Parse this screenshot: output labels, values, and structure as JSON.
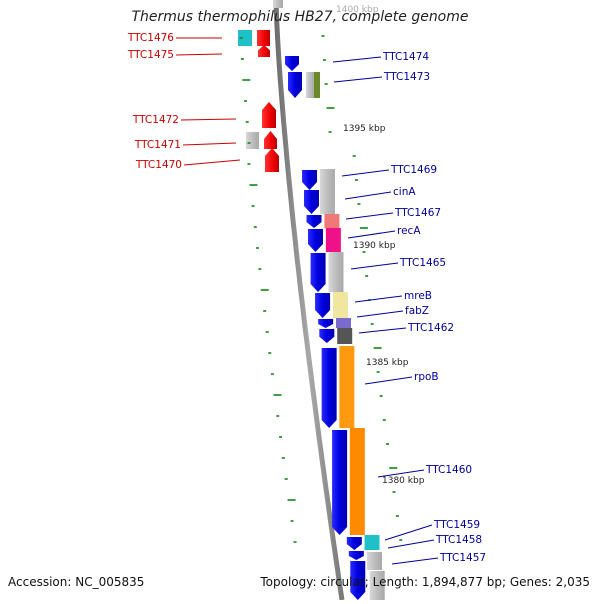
{
  "title": "Thermus thermophilus HB27, complete genome",
  "footer": {
    "accession": "Accession: NC_005835",
    "summary": "Topology: circular; Length: 1,894,877 bp; Genes: 2,035"
  },
  "colors": {
    "reverse_label": "#cc0000",
    "forward_label": "#000099",
    "forward_gene": "#1010e6",
    "reverse_gene": "#ee1111",
    "tick": "#118811",
    "backbone": "#8a8a8a"
  },
  "scale_labels": [
    "1400 kbp",
    "1395 kbp",
    "1390 kbp",
    "1385 kbp",
    "1380 kbp"
  ],
  "genes_reverse": [
    {
      "label": "TTC1476"
    },
    {
      "label": "TTC1475"
    },
    {
      "label": "TTC1472"
    },
    {
      "label": "TTC1471"
    },
    {
      "label": "TTC1470"
    }
  ],
  "genes_forward": [
    {
      "label": "TTC1474"
    },
    {
      "label": "TTC1473"
    },
    {
      "label": "TTC1469"
    },
    {
      "label": "cinA"
    },
    {
      "label": "TTC1467"
    },
    {
      "label": "recA"
    },
    {
      "label": "TTC1465"
    },
    {
      "label": "mreB"
    },
    {
      "label": "fabZ"
    },
    {
      "label": "TTC1462"
    },
    {
      "label": "rpoB"
    },
    {
      "label": "TTC1460"
    },
    {
      "label": "TTC1459"
    },
    {
      "label": "TTC1458"
    },
    {
      "label": "TTC1457"
    }
  ]
}
